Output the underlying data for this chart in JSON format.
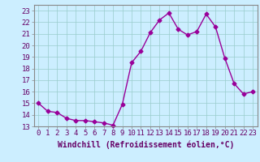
{
  "x": [
    0,
    1,
    2,
    3,
    4,
    5,
    6,
    7,
    8,
    9,
    10,
    11,
    12,
    13,
    14,
    15,
    16,
    17,
    18,
    19,
    20,
    21,
    22,
    23
  ],
  "y": [
    15.0,
    14.3,
    14.2,
    13.7,
    13.5,
    13.5,
    13.4,
    13.3,
    13.1,
    14.9,
    18.5,
    19.5,
    21.1,
    22.2,
    22.8,
    21.4,
    20.9,
    21.2,
    22.7,
    21.6,
    18.9,
    16.7,
    15.8,
    16.0
  ],
  "line_color": "#990099",
  "marker": "D",
  "marker_size": 2.5,
  "bg_color": "#cceeff",
  "grid_color": "#99cccc",
  "xlabel": "Windchill (Refroidissement éolien,°C)",
  "xlabel_fontsize": 7,
  "xtick_labels": [
    "0",
    "1",
    "2",
    "3",
    "4",
    "5",
    "6",
    "7",
    "8",
    "9",
    "10",
    "11",
    "12",
    "13",
    "14",
    "15",
    "16",
    "17",
    "18",
    "19",
    "20",
    "21",
    "22",
    "23"
  ],
  "ylim": [
    13,
    23.5
  ],
  "yticks": [
    13,
    14,
    15,
    16,
    17,
    18,
    19,
    20,
    21,
    22,
    23
  ],
  "tick_fontsize": 6.5,
  "line_width": 1.0,
  "spine_color": "#888888"
}
